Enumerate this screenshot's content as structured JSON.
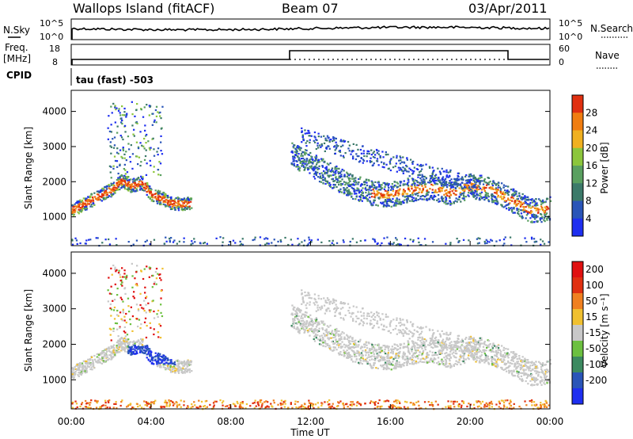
{
  "header": {
    "station": "Wallops Island (fitACF)",
    "beam": "Beam 07",
    "date": "03/Apr/2011"
  },
  "status_panels": {
    "nsky_label": "N.Sky",
    "nsky_top": "10^5",
    "nsky_bottom": "10^0",
    "nsearch_label": "N.Search",
    "nsearch_top": "10^5",
    "nsearch_bottom": "10^0",
    "freq_label_1": "Freq.",
    "freq_label_2": "[MHz]",
    "freq_top": "18",
    "freq_bottom": "8",
    "nave_label": "Nave",
    "nave_top": "60",
    "nave_bottom": "0",
    "cpid_label": "CPID",
    "cpid_text": "tau (fast) -503"
  },
  "chart_data": [
    {
      "type": "heatmap",
      "panel": "power",
      "ylabel": "Slant Range [km]",
      "ylim": [
        180,
        4600
      ],
      "y_ticks": [
        "1000",
        "2000",
        "3000",
        "4000"
      ],
      "x_ticks": [
        "00:00",
        "04:00",
        "08:00",
        "12:00",
        "16:00",
        "20:00",
        "00:00"
      ],
      "xlim_hours": [
        0,
        24
      ],
      "colorbar": {
        "label": "Power [dB]",
        "ticks": [
          "4",
          "8",
          "12",
          "16",
          "20",
          "24",
          "28"
        ],
        "colors": [
          "#1e2ff0",
          "#2a55b8",
          "#3c7a6a",
          "#5aa060",
          "#8cc63c",
          "#f0b020",
          "#f07d10",
          "#e03010"
        ]
      },
      "features": [
        {
          "desc": "main trace",
          "times_hr": [
            0.0,
            1.0,
            2.0,
            2.5,
            3.0,
            3.5,
            4.0,
            4.5,
            5.0,
            6.0
          ],
          "range_km": [
            1200,
            1500,
            1800,
            2050,
            1900,
            2000,
            1650,
            1550,
            1400,
            1400
          ]
        },
        {
          "desc": "night echo band",
          "times_hr": [
            11.0,
            12.0,
            13.0,
            14.0,
            15.0,
            16.0,
            17.0,
            18.0,
            19.0,
            20.0,
            21.0,
            22.0,
            23.0,
            24.0
          ],
          "range_km": [
            2800,
            2500,
            2200,
            1900,
            1700,
            1650,
            1800,
            1850,
            1700,
            1900,
            1800,
            1500,
            1200,
            1250
          ]
        }
      ]
    },
    {
      "type": "heatmap",
      "panel": "velocity",
      "ylabel": "Slant Range [km]",
      "ylim": [
        180,
        4600
      ],
      "y_ticks": [
        "1000",
        "2000",
        "3000",
        "4000"
      ],
      "x_ticks": [
        "00:00",
        "04:00",
        "08:00",
        "12:00",
        "16:00",
        "20:00",
        "00:00"
      ],
      "xlabel": "Time UT",
      "xlim_hours": [
        0,
        24
      ],
      "colorbar": {
        "label": "Velocity [m s⁻¹]",
        "ticks": [
          "200",
          "100",
          "50",
          "15",
          "-15",
          "-50",
          "-100",
          "-200"
        ],
        "colors": [
          "#1e2ff0",
          "#2a55b8",
          "#3c8a60",
          "#6cc040",
          "#c8c8c8",
          "#f0c030",
          "#f08020",
          "#e03010",
          "#e01010"
        ]
      }
    }
  ]
}
